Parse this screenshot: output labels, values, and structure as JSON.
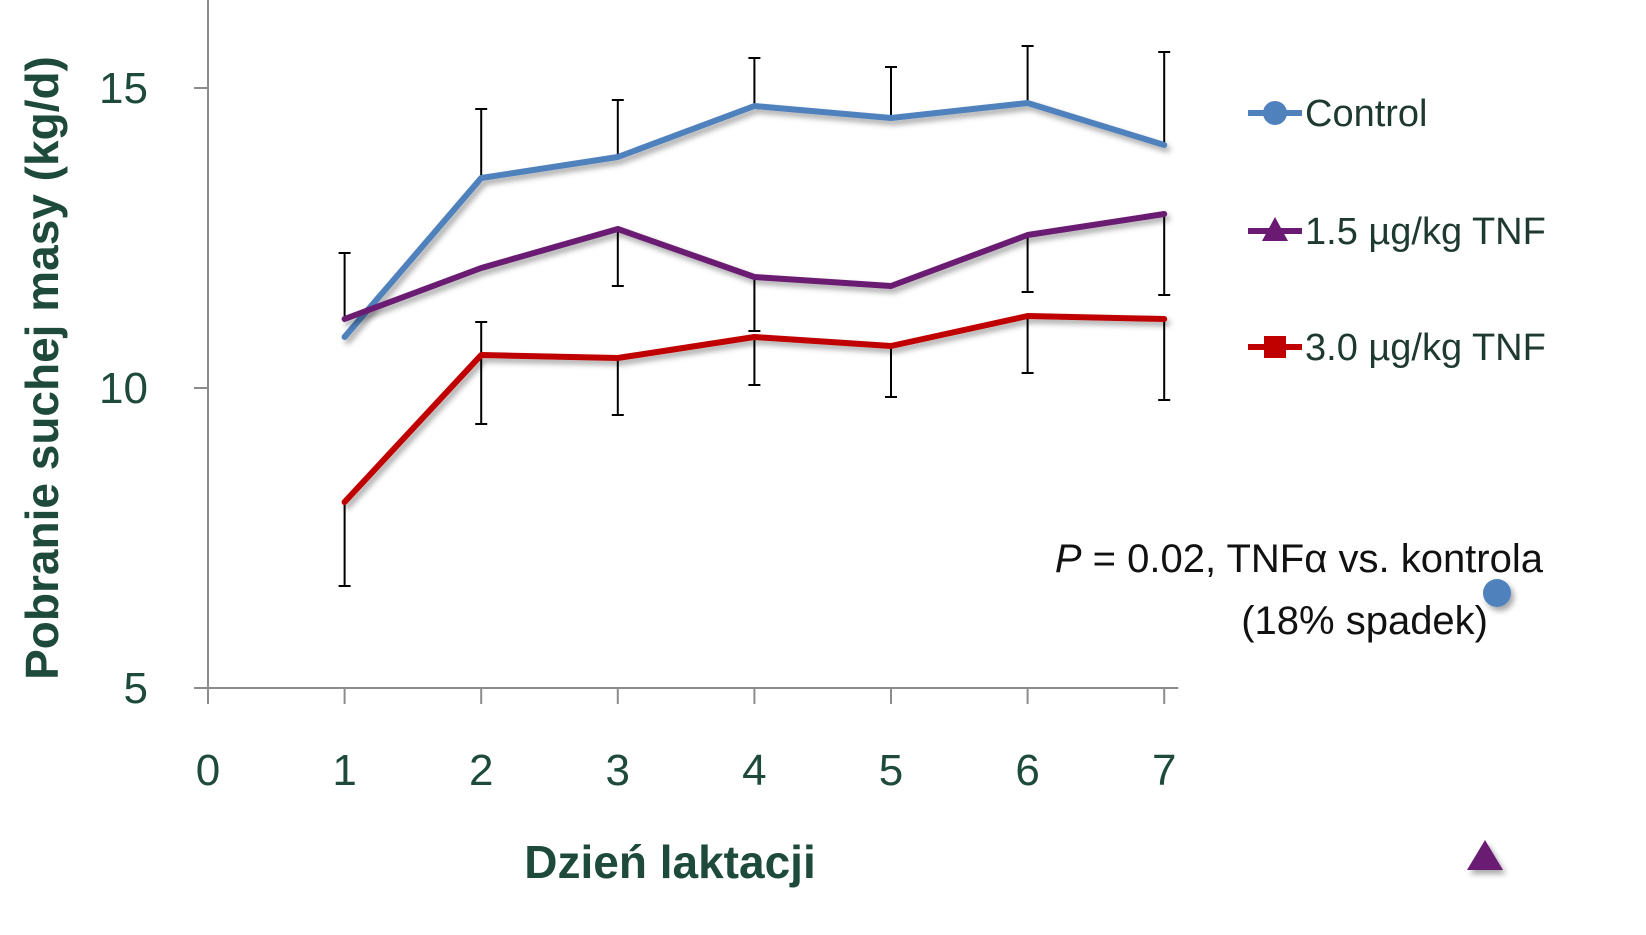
{
  "chart_data": {
    "type": "line",
    "title": "",
    "xlabel": "Dzień laktacji",
    "ylabel": "Pobranie suchej masy (kg/d)",
    "xlim": [
      0,
      7
    ],
    "ylim": [
      5,
      16
    ],
    "x_ticks": [
      "0",
      "1",
      "2",
      "3",
      "4",
      "5",
      "6",
      "7"
    ],
    "y_ticks": [
      "5",
      "10",
      "15"
    ],
    "grid": false,
    "legend_position": "right",
    "x": [
      1,
      2,
      3,
      4,
      5,
      6,
      7
    ],
    "series": [
      {
        "name": "Control",
        "color": "#4f81bd",
        "marker": "circle",
        "values": [
          10.85,
          13.5,
          13.85,
          14.7,
          14.5,
          14.75,
          14.05
        ],
        "error_upper": [
          null,
          14.65,
          14.8,
          15.5,
          15.35,
          15.7,
          15.6
        ],
        "error_lower": [
          null,
          null,
          null,
          null,
          null,
          null,
          null
        ]
      },
      {
        "name": "1.5 µg/kg TNF",
        "color": "#6a1a72",
        "marker": "triangle",
        "values": [
          11.15,
          12.0,
          12.65,
          11.85,
          11.7,
          12.55,
          12.9
        ],
        "error_upper": [
          12.25,
          null,
          null,
          null,
          null,
          null,
          null
        ],
        "error_lower": [
          null,
          null,
          11.7,
          10.95,
          null,
          11.6,
          11.55
        ]
      },
      {
        "name": "3.0 µg/kg TNF",
        "color": "#c00000",
        "marker": "square",
        "values": [
          8.1,
          10.55,
          10.5,
          10.85,
          10.7,
          11.2,
          11.15
        ],
        "error_upper": [
          null,
          11.1,
          null,
          null,
          null,
          null,
          null
        ],
        "error_lower": [
          6.7,
          9.4,
          9.55,
          10.05,
          9.85,
          10.25,
          9.8
        ]
      }
    ],
    "annotation": {
      "p_label": "P",
      "text_rest": " = 0.02, TNFα vs. kontrola",
      "line2": "(18% spadek)"
    },
    "corner_markers": [
      {
        "shape": "circle",
        "color": "#4f81bd"
      },
      {
        "shape": "triangle",
        "color": "#6a1a72"
      }
    ]
  }
}
